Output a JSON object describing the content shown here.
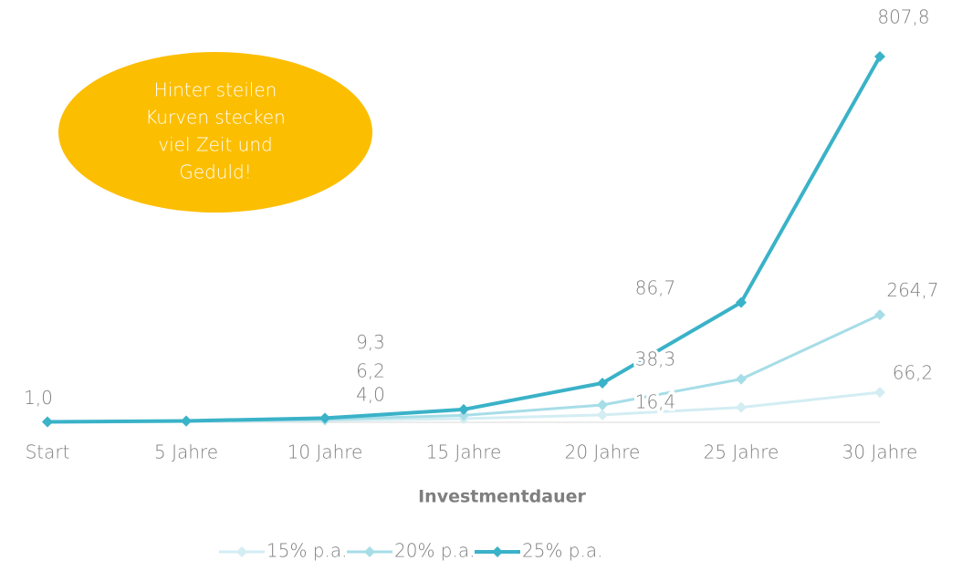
{
  "chart_data": {
    "type": "line",
    "categories": [
      "Start",
      "5 Jahre",
      "10 Jahre",
      "15 Jahre",
      "20 Jahre",
      "25 Jahre",
      "30 Jahre"
    ],
    "x_label": "Investmentdauer",
    "series": [
      {
        "name": "15% p.a.",
        "color": "#d3edf3",
        "values": [
          1.0,
          2.0,
          4.0,
          8.1,
          16.4,
          32.9,
          66.2
        ],
        "value_labels": [
          "1,0",
          null,
          "4,0",
          null,
          "16,4",
          null,
          "66,2"
        ]
      },
      {
        "name": "20% p.a.",
        "color": "#a6dde7",
        "values": [
          1.0,
          2.5,
          6.2,
          15.4,
          38.3,
          95.4,
          237.4
        ],
        "value_labels": [
          null,
          null,
          "6,2",
          null,
          "38,3",
          null,
          null
        ]
      },
      {
        "name": "25% p.a.",
        "color": "#3ab2c8",
        "values": [
          1.0,
          3.1,
          9.3,
          28.4,
          86.7,
          264.7,
          807.8
        ],
        "value_labels": [
          null,
          null,
          "9,3",
          null,
          "86,7",
          "264,7",
          "807,8"
        ]
      }
    ],
    "ylim": [
      0,
      850
    ],
    "annotation": [
      "Hinter steilen",
      "Kurven stecken",
      "viel Zeit und",
      "Geduld!"
    ],
    "legend": "bottom"
  }
}
